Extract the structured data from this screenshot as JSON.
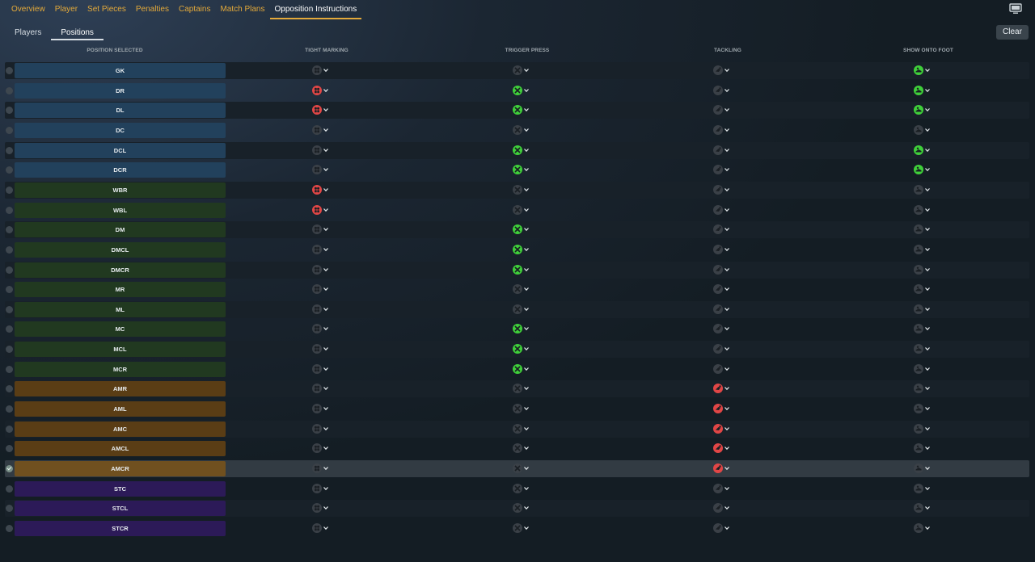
{
  "top_tabs": [
    {
      "label": "Overview",
      "active": false
    },
    {
      "label": "Player",
      "active": false
    },
    {
      "label": "Set Pieces",
      "active": false
    },
    {
      "label": "Penalties",
      "active": false
    },
    {
      "label": "Captains",
      "active": false
    },
    {
      "label": "Match Plans",
      "active": false
    },
    {
      "label": "Opposition Instructions",
      "active": true
    }
  ],
  "sub_tabs": [
    {
      "label": "Players",
      "active": false
    },
    {
      "label": "Positions",
      "active": true
    }
  ],
  "clear_label": "Clear",
  "columns": {
    "position": "POSITION SELECTED",
    "tight_marking": "TIGHT MARKING",
    "trigger_press": "TRIGGER PRESS",
    "tackling": "TACKLING",
    "show_onto_foot": "SHOW ONTO FOOT"
  },
  "colors": {
    "accent": "#e3a93a",
    "on_red": "#e14646",
    "on_green": "#3fcf3a",
    "off": "#3a4047",
    "defence": "#22415c",
    "midfield": "#213920",
    "attacking_mid": "#5a3d15",
    "striker": "#2c1a58"
  },
  "rows": [
    {
      "label": "GK",
      "group": "blue",
      "tight": "off",
      "press": "off",
      "tackle": "off",
      "foot": "green",
      "checked": false
    },
    {
      "label": "DR",
      "group": "blue",
      "tight": "red",
      "press": "green",
      "tackle": "off",
      "foot": "green",
      "checked": false
    },
    {
      "label": "DL",
      "group": "blue",
      "tight": "red",
      "press": "green",
      "tackle": "off",
      "foot": "green",
      "checked": false
    },
    {
      "label": "DC",
      "group": "blue",
      "tight": "off",
      "press": "off",
      "tackle": "off",
      "foot": "off",
      "checked": false
    },
    {
      "label": "DCL",
      "group": "blue",
      "tight": "off",
      "press": "green",
      "tackle": "off",
      "foot": "green",
      "checked": false
    },
    {
      "label": "DCR",
      "group": "blue",
      "tight": "off",
      "press": "green",
      "tackle": "off",
      "foot": "green",
      "checked": false
    },
    {
      "label": "WBR",
      "group": "green",
      "tight": "red",
      "press": "off",
      "tackle": "off",
      "foot": "off",
      "checked": false
    },
    {
      "label": "WBL",
      "group": "green",
      "tight": "red",
      "press": "off",
      "tackle": "off",
      "foot": "off",
      "checked": false
    },
    {
      "label": "DM",
      "group": "green",
      "tight": "off",
      "press": "green",
      "tackle": "off",
      "foot": "off",
      "checked": false
    },
    {
      "label": "DMCL",
      "group": "green",
      "tight": "off",
      "press": "green",
      "tackle": "off",
      "foot": "off",
      "checked": false
    },
    {
      "label": "DMCR",
      "group": "green",
      "tight": "off",
      "press": "green",
      "tackle": "off",
      "foot": "off",
      "checked": false
    },
    {
      "label": "MR",
      "group": "green",
      "tight": "off",
      "press": "off",
      "tackle": "off",
      "foot": "off",
      "checked": false
    },
    {
      "label": "ML",
      "group": "green",
      "tight": "off",
      "press": "off",
      "tackle": "off",
      "foot": "off",
      "checked": false
    },
    {
      "label": "MC",
      "group": "green",
      "tight": "off",
      "press": "green",
      "tackle": "off",
      "foot": "off",
      "checked": false
    },
    {
      "label": "MCL",
      "group": "green",
      "tight": "off",
      "press": "green",
      "tackle": "off",
      "foot": "off",
      "checked": false
    },
    {
      "label": "MCR",
      "group": "green",
      "tight": "off",
      "press": "green",
      "tackle": "off",
      "foot": "off",
      "checked": false
    },
    {
      "label": "AMR",
      "group": "orange",
      "tight": "off",
      "press": "off",
      "tackle": "red",
      "foot": "off",
      "checked": false
    },
    {
      "label": "AML",
      "group": "orange",
      "tight": "off",
      "press": "off",
      "tackle": "red",
      "foot": "off",
      "checked": false
    },
    {
      "label": "AMC",
      "group": "orange",
      "tight": "off",
      "press": "off",
      "tackle": "red",
      "foot": "off",
      "checked": false
    },
    {
      "label": "AMCL",
      "group": "orange",
      "tight": "off",
      "press": "off",
      "tackle": "red",
      "foot": "off",
      "checked": false
    },
    {
      "label": "AMCR",
      "group": "orange",
      "tight": "off",
      "press": "off",
      "tackle": "red",
      "foot": "off",
      "checked": true
    },
    {
      "label": "STC",
      "group": "purple",
      "tight": "off",
      "press": "off",
      "tackle": "off",
      "foot": "off",
      "checked": false
    },
    {
      "label": "STCL",
      "group": "purple",
      "tight": "off",
      "press": "off",
      "tackle": "off",
      "foot": "off",
      "checked": false
    },
    {
      "label": "STCR",
      "group": "purple",
      "tight": "off",
      "press": "off",
      "tackle": "off",
      "foot": "off",
      "checked": false
    }
  ],
  "icons": {
    "tight": "tight-marking-icon",
    "press": "trigger-press-icon",
    "tackle": "tackling-icon",
    "foot": "show-onto-foot-icon",
    "chevron": "chevron-down-icon",
    "screen": "screen-icon"
  }
}
